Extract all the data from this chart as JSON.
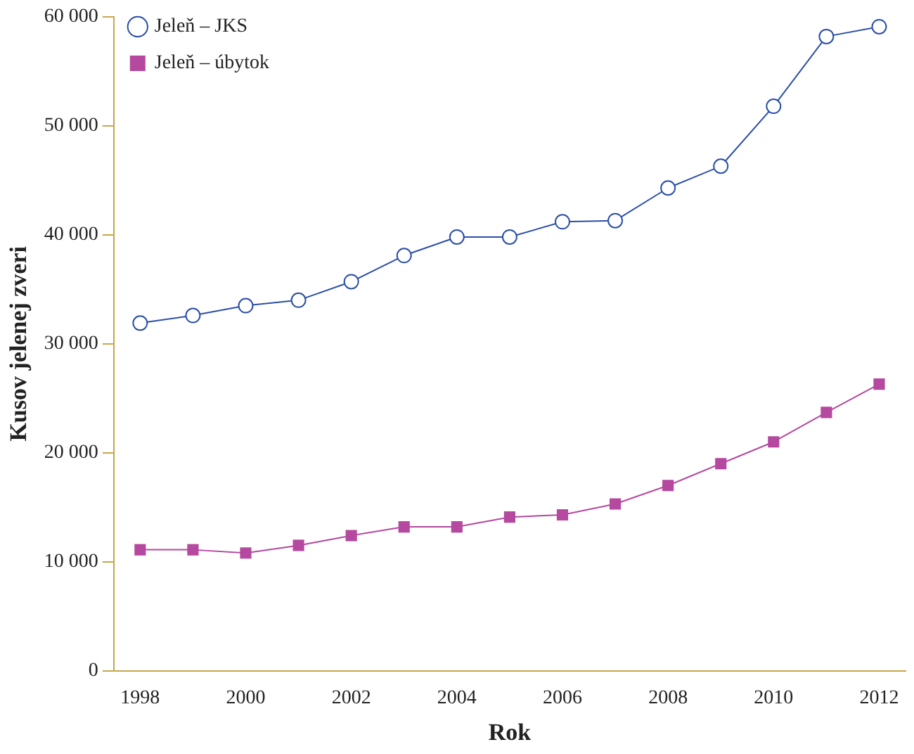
{
  "chart_data": {
    "type": "line",
    "xlabel": "Rok",
    "ylabel": "Kusov jelenej zveri",
    "x": [
      1998,
      1999,
      2000,
      2001,
      2002,
      2003,
      2004,
      2005,
      2006,
      2007,
      2008,
      2009,
      2010,
      2011,
      2012
    ],
    "series": [
      {
        "name": "Jeleň – JKS",
        "color": "#2b4fa8",
        "marker": "circle",
        "values": [
          31900,
          32600,
          33500,
          34000,
          35700,
          38100,
          39800,
          39800,
          41200,
          41300,
          44300,
          46300,
          51800,
          58200,
          59100
        ]
      },
      {
        "name": "Jeleň – úbytok",
        "color": "#b5489f",
        "marker": "square",
        "values": [
          11100,
          11100,
          10800,
          11500,
          12400,
          13200,
          13200,
          14100,
          14300,
          15300,
          17000,
          19000,
          21000,
          23700,
          26300
        ]
      }
    ],
    "xlim": [
      1997.5,
      2012.5
    ],
    "xticks": [
      1998,
      2000,
      2002,
      2004,
      2006,
      2008,
      2010,
      2012
    ],
    "ylim": [
      0,
      60000
    ],
    "yticks": [
      0,
      {
        "value": 10000,
        "label": "10 000"
      },
      {
        "value": 20000,
        "label": "20 000"
      },
      {
        "value": 30000,
        "label": "30 000"
      },
      {
        "value": 40000,
        "label": "40 000"
      },
      {
        "value": 50000,
        "label": "50 000"
      },
      {
        "value": 60000,
        "label": "60 000"
      }
    ],
    "grid": false,
    "legend": "top left",
    "line_style": "solid"
  }
}
